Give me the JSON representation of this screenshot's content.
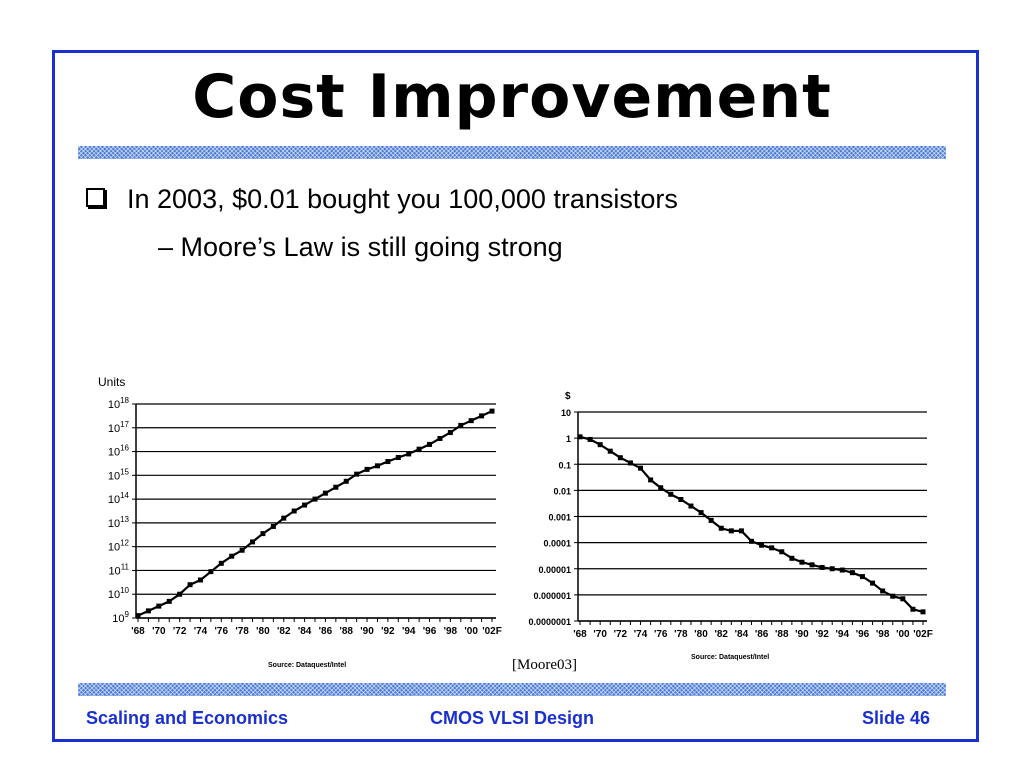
{
  "slide": {
    "title": "Cost Improvement",
    "bullet": "In 2003, $0.01 bought you 100,000 transistors",
    "sub_bullet": "– Moore’s Law is still going strong",
    "citation": "[Moore03]",
    "footer_left": "Scaling and Economics",
    "footer_center": "CMOS VLSI Design",
    "footer_right": "Slide 46"
  },
  "colors": {
    "accent": "#1a2fd0",
    "stripe": "#4a7bd8"
  },
  "chart_data": [
    {
      "type": "line",
      "ylabel": "Units",
      "yscale": "log",
      "ylim": [
        1000000000.0,
        1e+18
      ],
      "y_ticks": [
        "10^9",
        "10^10",
        "10^11",
        "10^12",
        "10^13",
        "10^14",
        "10^15",
        "10^16",
        "10^17",
        "10^18"
      ],
      "x_ticks": [
        "'68",
        "'70",
        "'72",
        "'74",
        "'76",
        "'78",
        "'80",
        "'82",
        "'84",
        "'86",
        "'88",
        "'90",
        "'92",
        "'94",
        "'96",
        "'98",
        "'00",
        "'02F"
      ],
      "source": "Source: Dataquest/Intel",
      "grid": true,
      "series": [
        {
          "x": [
            1968,
            1969,
            1970,
            1971,
            1972,
            1973,
            1974,
            1975,
            1976,
            1977,
            1978,
            1979,
            1980,
            1981,
            1982,
            1983,
            1984,
            1985,
            1986,
            1987,
            1988,
            1989,
            1990,
            1991,
            1992,
            1993,
            1994,
            1995,
            1996,
            1997,
            1998,
            1999,
            2000,
            2001,
            2002
          ],
          "y": [
            9.1,
            9.3,
            9.5,
            9.7,
            10.0,
            10.4,
            10.6,
            10.95,
            11.3,
            11.6,
            11.85,
            12.2,
            12.55,
            12.85,
            13.2,
            13.5,
            13.75,
            14.0,
            14.25,
            14.5,
            14.75,
            15.05,
            15.25,
            15.4,
            15.58,
            15.75,
            15.9,
            16.1,
            16.3,
            16.55,
            16.8,
            17.1,
            17.3,
            17.5,
            17.7
          ]
        }
      ]
    },
    {
      "type": "line",
      "ylabel": "$",
      "yscale": "log",
      "ylim": [
        1e-07,
        10
      ],
      "y_ticks": [
        "0.0000001",
        "0.000001",
        "0.00001",
        "0.0001",
        "0.001",
        "0.01",
        "0.1",
        "1",
        "10"
      ],
      "x_ticks": [
        "'68",
        "'70",
        "'72",
        "'74",
        "'76",
        "'78",
        "'80",
        "'82",
        "'84",
        "'86",
        "'88",
        "'90",
        "'92",
        "'94",
        "'96",
        "'98",
        "'00",
        "'02F"
      ],
      "source": "Source: Dataquest/Intel",
      "grid": true,
      "series": [
        {
          "x": [
            1968,
            1969,
            1970,
            1971,
            1972,
            1973,
            1974,
            1975,
            1976,
            1977,
            1978,
            1979,
            1980,
            1981,
            1982,
            1983,
            1984,
            1985,
            1986,
            1987,
            1988,
            1989,
            1990,
            1991,
            1992,
            1993,
            1994,
            1995,
            1996,
            1997,
            1998,
            1999,
            2000,
            2001,
            2002
          ],
          "y": [
            0.05,
            -0.05,
            -0.25,
            -0.5,
            -0.75,
            -0.95,
            -1.15,
            -1.6,
            -1.9,
            -2.15,
            -2.35,
            -2.6,
            -2.85,
            -3.15,
            -3.45,
            -3.55,
            -3.55,
            -3.95,
            -4.1,
            -4.2,
            -4.35,
            -4.6,
            -4.75,
            -4.85,
            -4.95,
            -5.0,
            -5.05,
            -5.15,
            -5.3,
            -5.55,
            -5.85,
            -6.05,
            -6.15,
            -6.55,
            -6.65
          ]
        }
      ]
    }
  ]
}
